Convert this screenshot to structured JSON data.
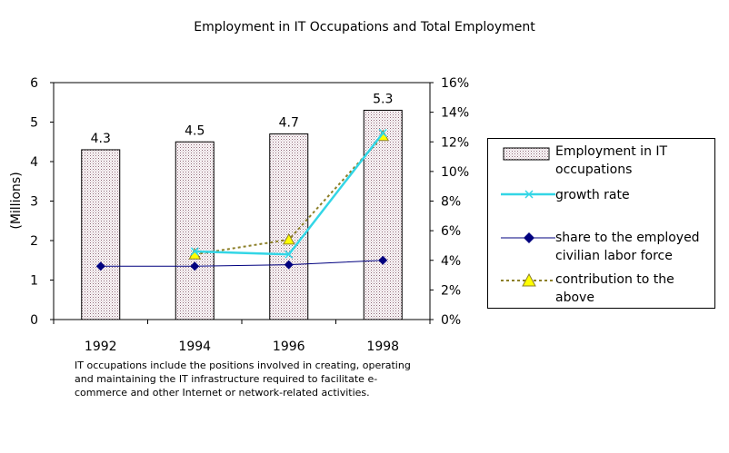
{
  "title": "Employment in IT Occupations and Total Employment",
  "note": "IT occupations include the positions involved in creating, operating and maintaining the IT infrastructure required to facilitate e-commerce and other Internet or network-related activities.",
  "chart_data": {
    "type": "bar",
    "title": "Employment in IT Occupations and Total Employment",
    "categories": [
      "1992",
      "1994",
      "1996",
      "1998"
    ],
    "ylabel": "(Millions)",
    "ylim": [
      0,
      6
    ],
    "yticks": [
      "0",
      "1",
      "2",
      "3",
      "4",
      "5",
      "6"
    ],
    "y2lim": [
      0,
      16
    ],
    "y2ticks": [
      "0%",
      "2%",
      "4%",
      "6%",
      "8%",
      "10%",
      "12%",
      "14%",
      "16%"
    ],
    "legend_position": "right",
    "series": [
      {
        "name": "Employment in IT occupations",
        "kind": "bar",
        "axis": "left",
        "values": [
          4.3,
          4.5,
          4.7,
          5.3
        ],
        "labels": [
          "4.3",
          "4.5",
          "4.7",
          "5.3"
        ],
        "color": "#c8a0b4"
      },
      {
        "name": "growth rate",
        "kind": "line",
        "axis": "right",
        "values": [
          null,
          4.6,
          4.4,
          12.6
        ],
        "color": "#33d6e6",
        "marker": "x"
      },
      {
        "name": "share to the employed civilian labor force",
        "kind": "line",
        "axis": "right",
        "values": [
          3.6,
          3.6,
          3.7,
          4.0
        ],
        "color": "#00007f",
        "marker": "diamond"
      },
      {
        "name": "contribution to the above",
        "kind": "line",
        "axis": "right",
        "values": [
          null,
          4.4,
          5.4,
          12.4
        ],
        "color": "#8c7f28",
        "marker": "triangle",
        "dash": true
      }
    ]
  }
}
